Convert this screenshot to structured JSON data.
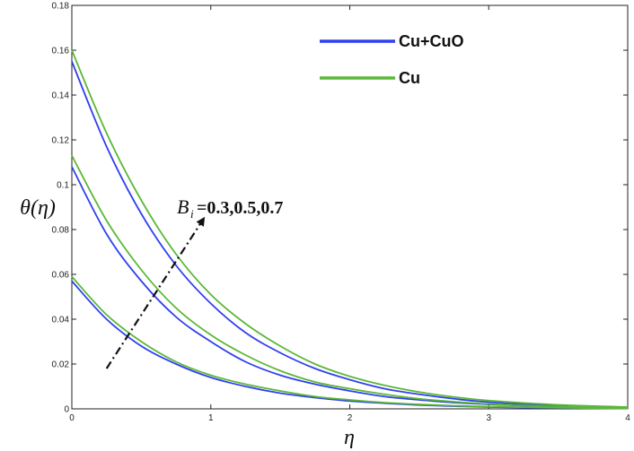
{
  "chart_data": {
    "type": "line",
    "title": "",
    "xlabel": "η",
    "ylabel": "θ(η)",
    "xlim": [
      0,
      4
    ],
    "ylim": [
      0,
      0.18
    ],
    "xticks": [
      "0",
      "1",
      "2",
      "3",
      "4"
    ],
    "yticks": [
      "0",
      "0.02",
      "0.04",
      "0.06",
      "0.08",
      "0.1",
      "0.12",
      "0.14",
      "0.16",
      "0.18"
    ],
    "grid": false,
    "legend": {
      "placement": "top-right",
      "entries": [
        "Cu+CuO",
        "Cu"
      ]
    },
    "annotation": {
      "symbol": "B",
      "subscript": "i",
      "values": "=0.3,0.5,0.7"
    },
    "colors": {
      "Cu+CuO": "#2f3ff0",
      "Cu": "#5bb836"
    },
    "x": [
      0,
      0.25,
      0.5,
      0.75,
      1,
      1.25,
      1.5,
      1.75,
      2,
      2.25,
      2.5,
      2.75,
      3,
      3.5,
      4
    ],
    "series": [
      {
        "name": "Cu+CuO",
        "values": [
          0.057,
          0.04,
          0.028,
          0.02,
          0.014,
          0.01,
          0.007,
          0.005,
          0.0035,
          0.0025,
          0.0017,
          0.0012,
          0.0008,
          0.0004,
          0.0002
        ]
      },
      {
        "name": "Cu+CuO",
        "values": [
          0.108,
          0.078,
          0.057,
          0.041,
          0.03,
          0.021,
          0.015,
          0.011,
          0.008,
          0.0055,
          0.004,
          0.0028,
          0.002,
          0.0009,
          0.0004
        ]
      },
      {
        "name": "Cu+CuO",
        "values": [
          0.155,
          0.117,
          0.087,
          0.064,
          0.047,
          0.034,
          0.025,
          0.018,
          0.013,
          0.009,
          0.0065,
          0.0045,
          0.003,
          0.0014,
          0.0006
        ]
      },
      {
        "name": "Cu",
        "values": [
          0.059,
          0.042,
          0.03,
          0.021,
          0.015,
          0.011,
          0.008,
          0.0055,
          0.004,
          0.0028,
          0.002,
          0.0014,
          0.001,
          0.0005,
          0.0002
        ]
      },
      {
        "name": "Cu",
        "values": [
          0.113,
          0.084,
          0.062,
          0.045,
          0.033,
          0.024,
          0.017,
          0.012,
          0.009,
          0.0065,
          0.0045,
          0.0032,
          0.0022,
          0.001,
          0.0005
        ]
      },
      {
        "name": "Cu",
        "values": [
          0.16,
          0.123,
          0.093,
          0.069,
          0.051,
          0.038,
          0.028,
          0.02,
          0.0145,
          0.0105,
          0.0075,
          0.0053,
          0.0037,
          0.0018,
          0.0008
        ]
      }
    ],
    "arrow": {
      "from": [
        0.25,
        0.018
      ],
      "to": [
        0.95,
        0.085
      ]
    }
  }
}
